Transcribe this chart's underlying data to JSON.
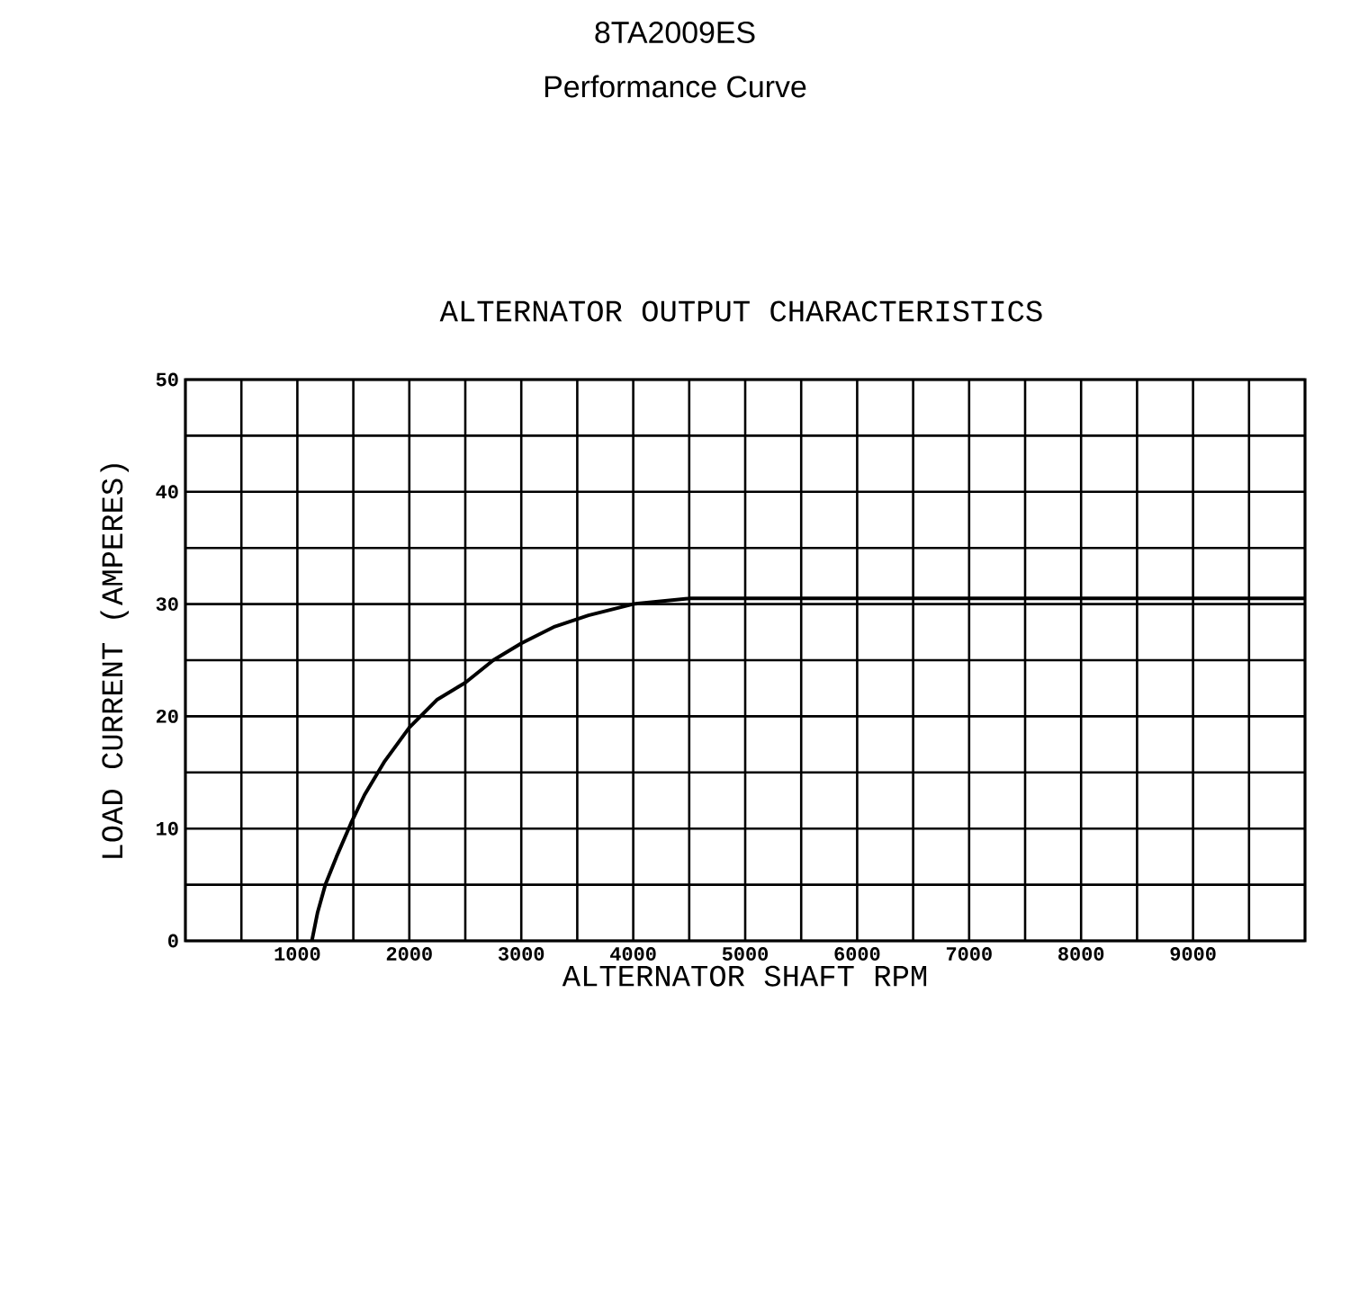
{
  "chart_data": {
    "type": "line",
    "title": "8TA2009ES",
    "subtitle": "Performance Curve",
    "annotations": [
      "ALTERNATOR OUTPUT CHARACTERISTICS"
    ],
    "xlabel": "ALTERNATOR SHAFT RPM",
    "ylabel": "LOAD CURRENT (AMPERES)",
    "x": [
      1130,
      1180,
      1250,
      1350,
      1480,
      1600,
      1780,
      2000,
      2250,
      2500,
      2750,
      3000,
      3300,
      3600,
      4000,
      4500,
      10000
    ],
    "values": [
      0,
      2.5,
      5,
      7.5,
      10.5,
      13,
      16,
      19,
      21.5,
      23,
      25,
      26.5,
      28,
      29,
      30,
      30.5,
      30.5
    ],
    "color": "#000000",
    "line_style": "solid",
    "marker": "none",
    "grid": true,
    "xlim": [
      0,
      10000
    ],
    "xticks": [
      {
        "value": 500,
        "label": null
      },
      1000,
      {
        "value": 1500,
        "label": null
      },
      2000,
      {
        "value": 2500,
        "label": null
      },
      3000,
      {
        "value": 3500,
        "label": null
      },
      4000,
      {
        "value": 4500,
        "label": null
      },
      5000,
      {
        "value": 5500,
        "label": null
      },
      6000,
      {
        "value": 6500,
        "label": null
      },
      7000,
      {
        "value": 7500,
        "label": null
      },
      8000,
      {
        "value": 8500,
        "label": null
      },
      9000,
      {
        "value": 9500,
        "label": null
      }
    ],
    "ylim": [
      0,
      50
    ],
    "yticks": [
      0,
      {
        "value": 5,
        "label": null
      },
      10,
      {
        "value": 15,
        "label": null
      },
      20,
      {
        "value": 25,
        "label": null
      },
      30,
      {
        "value": 35,
        "label": null
      },
      40,
      {
        "value": 45,
        "label": null
      },
      50
    ]
  }
}
